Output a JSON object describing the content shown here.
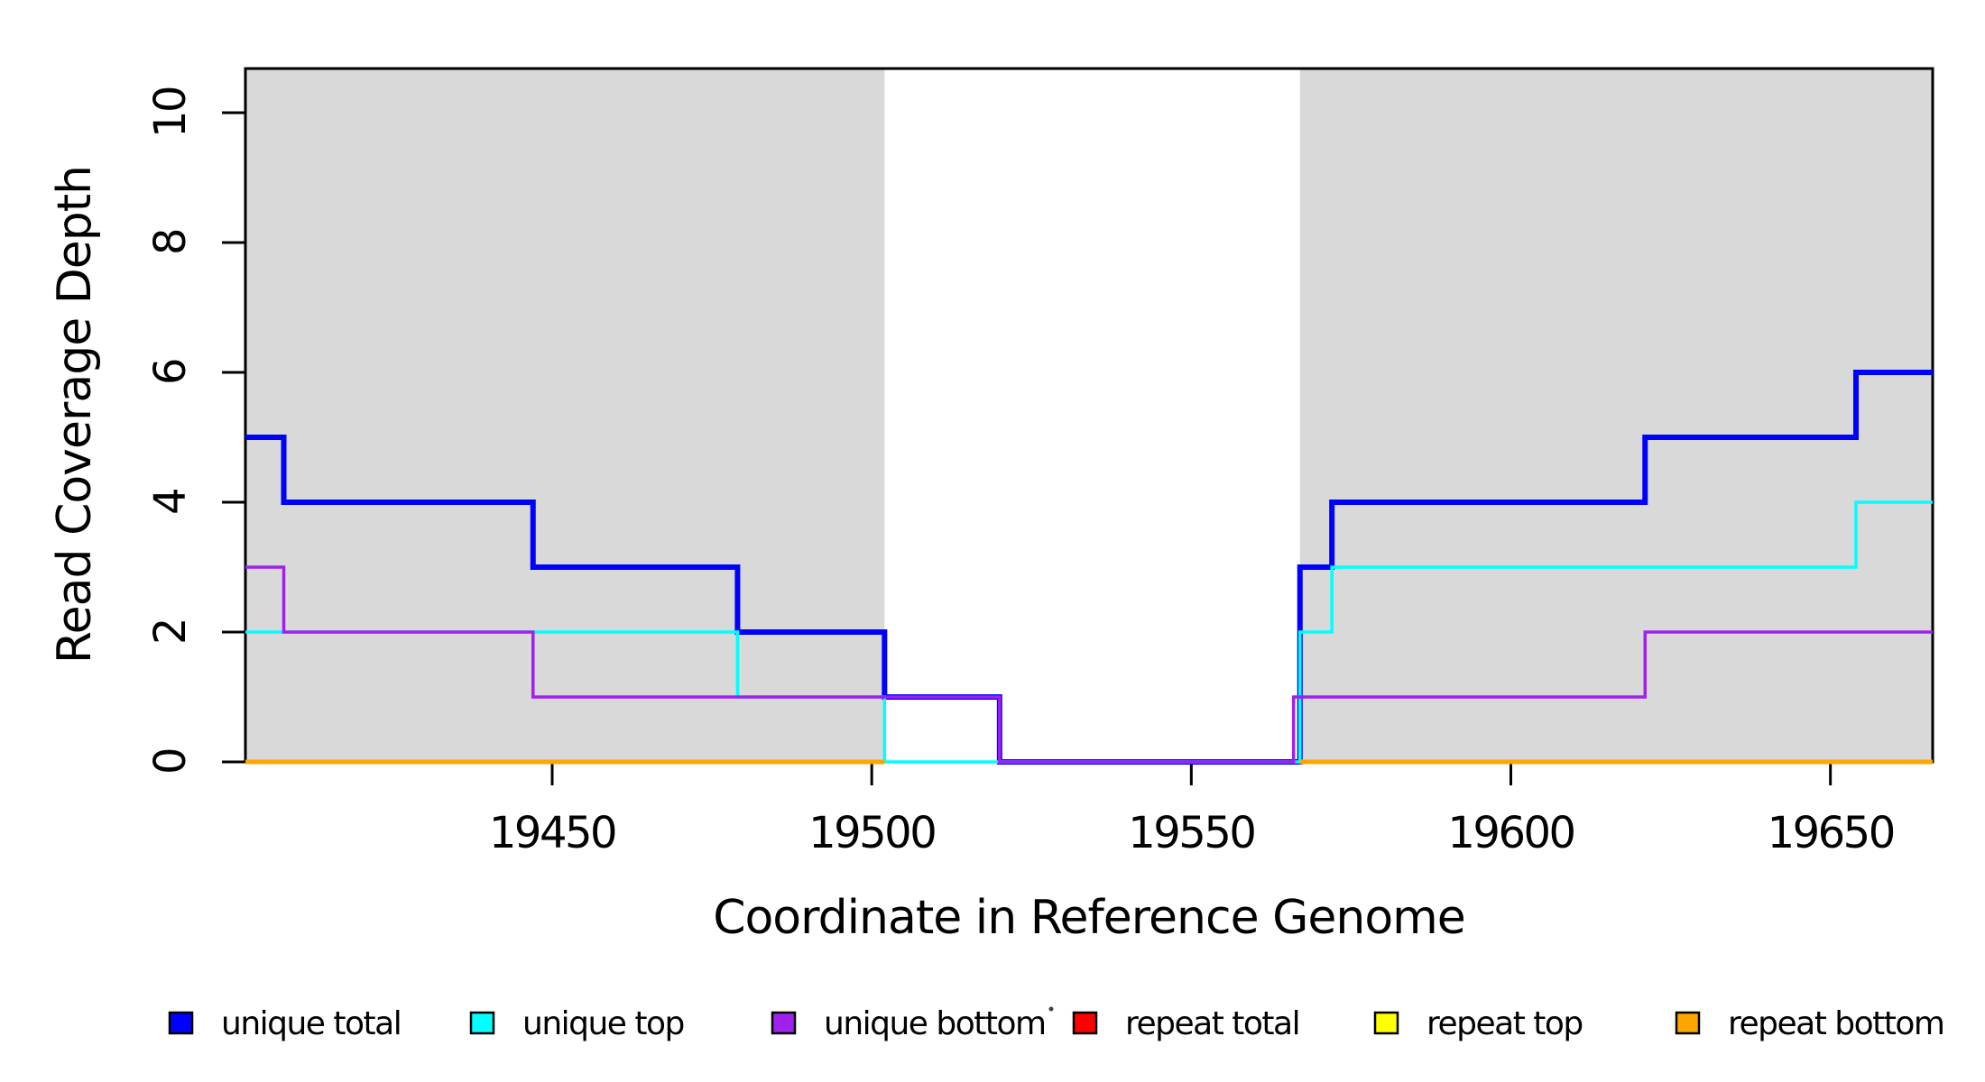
{
  "chart_data": {
    "type": "line",
    "subtype": "step-coverage-plot",
    "title": "",
    "xlabel": "Coordinate in Reference Genome",
    "ylabel": "Read Coverage Depth",
    "xlim": [
      19402,
      19666
    ],
    "ylim": [
      0,
      10.68
    ],
    "x_ticks": [
      19450,
      19500,
      19550,
      19600,
      19650
    ],
    "y_ticks": [
      0,
      2,
      4,
      6,
      8,
      10
    ],
    "grid": false,
    "legend_position": "bottom",
    "shaded_color": "#d9d9d9",
    "shaded_regions": [
      [
        19402,
        19502
      ],
      [
        19567,
        19666
      ]
    ],
    "series": [
      {
        "name": "unique total",
        "color": "#0000ff",
        "width": 6,
        "steps": [
          [
            19402,
            5
          ],
          [
            19408,
            4
          ],
          [
            19447,
            3
          ],
          [
            19479,
            2
          ],
          [
            19502,
            1
          ],
          [
            19520,
            0
          ],
          [
            19567,
            3
          ],
          [
            19572,
            4
          ],
          [
            19621,
            5
          ],
          [
            19654,
            6
          ]
        ],
        "end": 19666
      },
      {
        "name": "unique top",
        "color": "#00ffff",
        "width": 3.5,
        "steps": [
          [
            19402,
            2
          ],
          [
            19479,
            1
          ],
          [
            19502,
            0
          ],
          [
            19567,
            2
          ],
          [
            19572,
            3
          ],
          [
            19654,
            4
          ]
        ],
        "end": 19666
      },
      {
        "name": "unique bottom",
        "color": "#a020f0",
        "width": 3.5,
        "steps": [
          [
            19402,
            3
          ],
          [
            19408,
            2
          ],
          [
            19447,
            1
          ],
          [
            19520,
            0
          ],
          [
            19566,
            1
          ],
          [
            19621,
            2
          ]
        ],
        "end": 19666
      },
      {
        "name": "repeat total",
        "color": "#ff0000",
        "width": 3,
        "value": 0,
        "segments": [
          [
            19402,
            19502
          ],
          [
            19567,
            19666
          ]
        ]
      },
      {
        "name": "repeat top",
        "color": "#ffff00",
        "width": 3,
        "value": 0,
        "segments": [
          [
            19402,
            19502
          ],
          [
            19567,
            19666
          ]
        ]
      },
      {
        "name": "repeat bottom",
        "color": "#ffa500",
        "width": 5,
        "value": 0,
        "segments": [
          [
            19402,
            19502
          ],
          [
            19567,
            19666
          ]
        ]
      }
    ],
    "legend": [
      {
        "label": "unique total",
        "color": "#0000ff"
      },
      {
        "label": "unique top",
        "color": "#00ffff"
      },
      {
        "label": "unique bottom",
        "color": "#a020f0"
      },
      {
        "label": "repeat total",
        "color": "#ff0000"
      },
      {
        "label": "repeat top",
        "color": "#ffff00"
      },
      {
        "label": "repeat bottom",
        "color": "#ffa500"
      }
    ],
    "stray_dot": {
      "x": 1165,
      "y": 1119
    }
  }
}
